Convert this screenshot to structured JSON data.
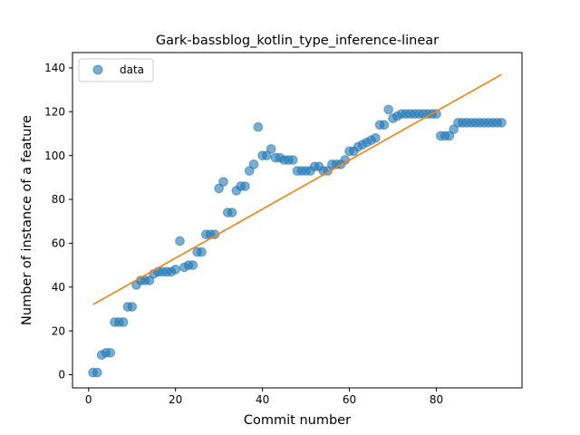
{
  "chart_data": {
    "type": "scatter",
    "title": "Gark-bassblog_kotlin_type_inference-linear",
    "xlabel": "Commit number",
    "ylabel": "Number of instance of a feature",
    "xlim": [
      -3.7,
      99.7
    ],
    "ylim": [
      -6,
      147
    ],
    "xticks": [
      0,
      20,
      40,
      60,
      80
    ],
    "yticks": [
      0,
      20,
      40,
      60,
      80,
      100,
      120,
      140
    ],
    "grid": false,
    "legend": {
      "placement": "upper-left",
      "entries": [
        "data"
      ]
    },
    "colors": {
      "points": "#1f77b4",
      "fit_line": "#ff7f0e"
    },
    "series": [
      {
        "name": "data",
        "kind": "scatter",
        "x": [
          1,
          2,
          3,
          4,
          5,
          6,
          7,
          8,
          9,
          10,
          11,
          12,
          13,
          14,
          15,
          16,
          17,
          18,
          19,
          20,
          21,
          22,
          23,
          24,
          25,
          26,
          27,
          28,
          29,
          30,
          31,
          32,
          33,
          34,
          35,
          36,
          37,
          38,
          39,
          40,
          41,
          42,
          43,
          44,
          45,
          46,
          47,
          48,
          49,
          50,
          51,
          52,
          53,
          54,
          55,
          56,
          57,
          58,
          59,
          60,
          61,
          62,
          63,
          64,
          65,
          66,
          67,
          68,
          69,
          70,
          71,
          72,
          73,
          74,
          75,
          76,
          77,
          78,
          79,
          80,
          81,
          82,
          83,
          84,
          85,
          86,
          87,
          88,
          89,
          90,
          91,
          92,
          93,
          94,
          95
        ],
        "y": [
          1,
          1,
          9,
          10,
          10,
          24,
          24,
          24,
          31,
          31,
          41,
          43,
          43,
          43,
          46,
          47,
          47,
          47,
          47,
          48,
          61,
          49,
          50,
          50,
          56,
          56,
          64,
          64,
          64,
          85,
          88,
          74,
          74,
          84,
          86,
          86,
          93,
          96,
          113,
          100,
          100,
          103,
          99,
          99,
          98,
          98,
          98,
          93,
          93,
          93,
          93,
          95,
          95,
          93,
          93,
          96,
          96,
          96,
          98,
          102,
          102,
          104,
          105,
          106,
          107,
          108,
          114,
          114,
          121,
          117,
          118,
          119,
          119,
          119,
          119,
          119,
          119,
          119,
          119,
          119,
          109,
          109,
          109,
          112,
          115,
          115,
          115,
          115,
          115,
          115,
          115,
          115,
          115,
          115,
          115
        ]
      },
      {
        "name": "",
        "kind": "line",
        "x": [
          1,
          95
        ],
        "y": [
          32,
          137
        ]
      }
    ]
  }
}
